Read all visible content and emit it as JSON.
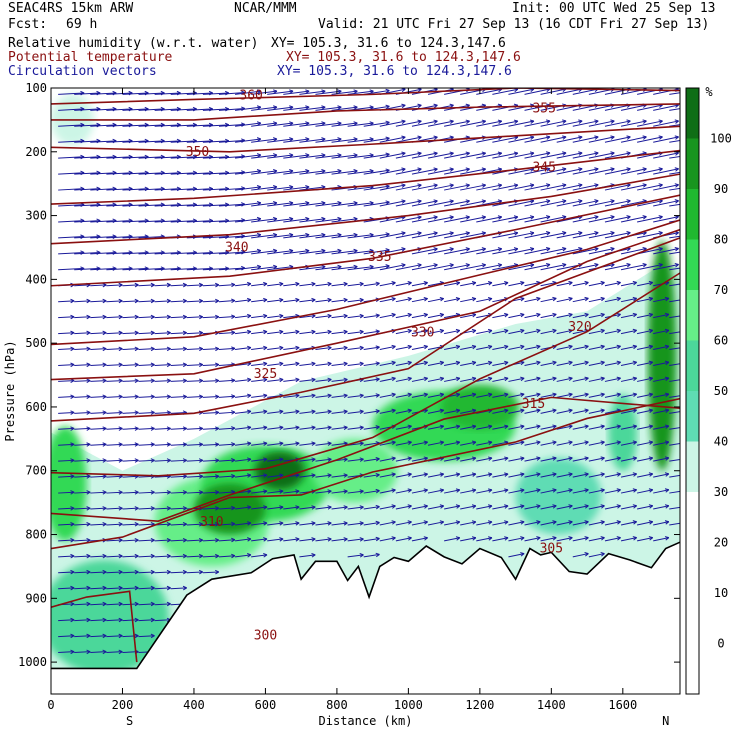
{
  "header": {
    "model": "SEAC4RS 15km ARW",
    "center": "NCAR/MMM",
    "init": "Init: 00 UTC Wed 25 Sep 13",
    "fcst_label": "Fcst:",
    "fcst_value": "69 h",
    "valid": "Valid: 21 UTC Fri 27 Sep 13 (16 CDT Fri 27 Sep 13)"
  },
  "fields": [
    {
      "name": "Relative humidity (w.r.t. water)",
      "xy": "XY= 105.3, 31.6 to 124.3,147.6",
      "color": "#000000"
    },
    {
      "name": "Potential temperature",
      "xy": "XY= 105.3, 31.6 to 124.3,147.6",
      "color": "#8a1010"
    },
    {
      "name": "Circulation vectors",
      "xy": "XY= 105.3, 31.6 to 124.3,147.6",
      "color": "#1a1a9a"
    }
  ],
  "chart_data": {
    "type": "heatmap",
    "xlabel": "Distance (km)",
    "ylabel": "Pressure (hPa)",
    "xlim": [
      0,
      1760
    ],
    "ylim": [
      1050,
      100
    ],
    "x_ticks": [
      0,
      200,
      400,
      600,
      800,
      1000,
      1200,
      1400,
      1600
    ],
    "y_ticks": [
      100,
      200,
      300,
      400,
      500,
      600,
      700,
      800,
      900,
      1000
    ],
    "x_end_labels": {
      "left": "S",
      "right": "N"
    },
    "colorbar": {
      "unit": "%",
      "ticks": [
        0,
        10,
        20,
        30,
        40,
        50,
        60,
        70,
        80,
        90,
        100
      ],
      "levels": [
        {
          "min": -10,
          "max": 0,
          "color": "#ffffff"
        },
        {
          "min": 0,
          "max": 10,
          "color": "#ffffff"
        },
        {
          "min": 10,
          "max": 20,
          "color": "#ffffff"
        },
        {
          "min": 20,
          "max": 30,
          "color": "#ffffff"
        },
        {
          "min": 30,
          "max": 40,
          "color": "#ccf5e6"
        },
        {
          "min": 40,
          "max": 50,
          "color": "#5fdcb4"
        },
        {
          "min": 50,
          "max": 60,
          "color": "#4cd79a"
        },
        {
          "min": 60,
          "max": 70,
          "color": "#66ee88"
        },
        {
          "min": 70,
          "max": 80,
          "color": "#33d955"
        },
        {
          "min": 80,
          "max": 90,
          "color": "#20b830"
        },
        {
          "min": 90,
          "max": 100,
          "color": "#18951f"
        },
        {
          "min": 100,
          "max": 110,
          "color": "#0f6e16"
        }
      ]
    },
    "terrain": [
      [
        0,
        1010
      ],
      [
        240,
        1010
      ],
      [
        380,
        895
      ],
      [
        450,
        870
      ],
      [
        560,
        860
      ],
      [
        620,
        838
      ],
      [
        680,
        832
      ],
      [
        700,
        870
      ],
      [
        740,
        842
      ],
      [
        800,
        842
      ],
      [
        830,
        872
      ],
      [
        860,
        850
      ],
      [
        890,
        898
      ],
      [
        920,
        850
      ],
      [
        960,
        836
      ],
      [
        1000,
        842
      ],
      [
        1050,
        818
      ],
      [
        1100,
        835
      ],
      [
        1150,
        846
      ],
      [
        1200,
        822
      ],
      [
        1260,
        836
      ],
      [
        1300,
        870
      ],
      [
        1340,
        822
      ],
      [
        1370,
        832
      ],
      [
        1400,
        828
      ],
      [
        1450,
        858
      ],
      [
        1500,
        862
      ],
      [
        1560,
        830
      ],
      [
        1620,
        840
      ],
      [
        1680,
        852
      ],
      [
        1720,
        822
      ],
      [
        1760,
        812
      ]
    ],
    "isentropes": [
      {
        "theta": 360,
        "points": [
          [
            0,
            125
          ],
          [
            400,
            118
          ],
          [
            900,
            110
          ],
          [
            1300,
            100
          ],
          [
            1760,
            104
          ]
        ]
      },
      {
        "theta": 355,
        "points": [
          [
            0,
            150
          ],
          [
            400,
            150
          ],
          [
            800,
            136
          ],
          [
            1200,
            130
          ],
          [
            1760,
            125
          ]
        ]
      },
      {
        "theta": 350,
        "points": [
          [
            0,
            193
          ],
          [
            500,
            200
          ],
          [
            900,
            188
          ],
          [
            1300,
            175
          ],
          [
            1760,
            160
          ]
        ]
      },
      {
        "theta": 345,
        "points": [
          [
            0,
            282
          ],
          [
            400,
            273
          ],
          [
            900,
            253
          ],
          [
            1300,
            228
          ],
          [
            1760,
            198
          ]
        ]
      },
      {
        "theta": 340,
        "points": [
          [
            0,
            344
          ],
          [
            500,
            330
          ],
          [
            1000,
            300
          ],
          [
            1400,
            270
          ],
          [
            1760,
            235
          ]
        ]
      },
      {
        "theta": 335,
        "points": [
          [
            0,
            410
          ],
          [
            500,
            395
          ],
          [
            900,
            367
          ],
          [
            1300,
            322
          ],
          [
            1760,
            268
          ]
        ]
      },
      {
        "theta": 330,
        "points": [
          [
            0,
            502
          ],
          [
            400,
            490
          ],
          [
            800,
            447
          ],
          [
            1200,
            393
          ],
          [
            1500,
            353
          ],
          [
            1760,
            307
          ]
        ]
      },
      {
        "theta": 325,
        "points": [
          [
            0,
            557
          ],
          [
            400,
            548
          ],
          [
            800,
            500
          ],
          [
            1200,
            450
          ],
          [
            1500,
            372
          ],
          [
            1760,
            322
          ]
        ]
      },
      {
        "theta": 320,
        "points": [
          [
            0,
            622
          ],
          [
            400,
            610
          ],
          [
            700,
            577
          ],
          [
            1000,
            540
          ],
          [
            1300,
            430
          ],
          [
            1760,
            335
          ]
        ]
      },
      {
        "theta": 315,
        "points": [
          [
            0,
            703
          ],
          [
            300,
            708
          ],
          [
            600,
            697
          ],
          [
            900,
            648
          ],
          [
            1200,
            556
          ],
          [
            1500,
            482
          ],
          [
            1760,
            390
          ]
        ]
      },
      {
        "theta": 310,
        "points": [
          [
            0,
            767
          ],
          [
            300,
            779
          ],
          [
            500,
            738
          ],
          [
            800,
            683
          ],
          [
            1100,
            619
          ],
          [
            1400,
            585
          ],
          [
            1760,
            602
          ]
        ]
      },
      {
        "theta": 305,
        "points": [
          [
            0,
            822
          ],
          [
            200,
            804
          ],
          [
            500,
            742
          ],
          [
            700,
            738
          ],
          [
            900,
            702
          ],
          [
            1300,
            655
          ],
          [
            1500,
            618
          ],
          [
            1760,
            587
          ]
        ]
      },
      {
        "theta": 300,
        "points": [
          [
            0,
            914
          ],
          [
            100,
            898
          ],
          [
            220,
            889
          ],
          [
            240,
            1000
          ]
        ]
      }
    ],
    "isentrope_labels": [
      {
        "theta": 360,
        "x": 560,
        "p": 112
      },
      {
        "theta": 355,
        "x": 1380,
        "p": 132
      },
      {
        "theta": 350,
        "x": 410,
        "p": 200
      },
      {
        "theta": 345,
        "x": 1380,
        "p": 225
      },
      {
        "theta": 340,
        "x": 520,
        "p": 350
      },
      {
        "theta": 335,
        "x": 920,
        "p": 365
      },
      {
        "theta": 330,
        "x": 1040,
        "p": 483
      },
      {
        "theta": 325,
        "x": 600,
        "p": 548
      },
      {
        "theta": 320,
        "x": 1480,
        "p": 475
      },
      {
        "theta": 315,
        "x": 1350,
        "p": 595
      },
      {
        "theta": 310,
        "x": 450,
        "p": 780
      },
      {
        "theta": 305,
        "x": 1400,
        "p": 822
      },
      {
        "theta": 300,
        "x": 600,
        "p": 958
      }
    ]
  }
}
